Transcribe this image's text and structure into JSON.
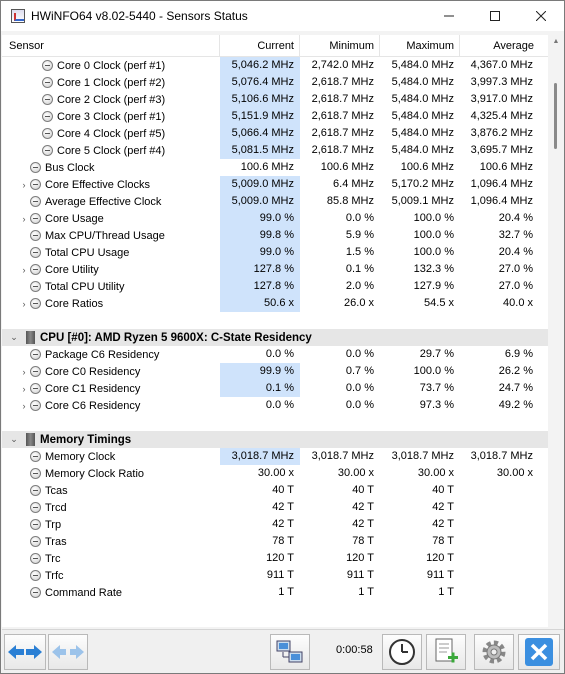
{
  "window": {
    "title": "HWiNFO64 v8.02-5440 - Sensors Status"
  },
  "columns": {
    "sensor": "Sensor",
    "current": "Current",
    "minimum": "Minimum",
    "maximum": "Maximum",
    "average": "Average"
  },
  "rows": [
    {
      "type": "item",
      "indent": 2,
      "expand": "",
      "name": "Core 0 Clock (perf #1)",
      "cur": "5,046.2 MHz",
      "min": "2,742.0 MHz",
      "max": "5,484.0 MHz",
      "avg": "4,367.0 MHz",
      "hl": true
    },
    {
      "type": "item",
      "indent": 2,
      "expand": "",
      "name": "Core 1 Clock (perf #2)",
      "cur": "5,076.4 MHz",
      "min": "2,618.7 MHz",
      "max": "5,484.0 MHz",
      "avg": "3,997.3 MHz",
      "hl": true
    },
    {
      "type": "item",
      "indent": 2,
      "expand": "",
      "name": "Core 2 Clock (perf #3)",
      "cur": "5,106.6 MHz",
      "min": "2,618.7 MHz",
      "max": "5,484.0 MHz",
      "avg": "3,917.0 MHz",
      "hl": true
    },
    {
      "type": "item",
      "indent": 2,
      "expand": "",
      "name": "Core 3 Clock (perf #1)",
      "cur": "5,151.9 MHz",
      "min": "2,618.7 MHz",
      "max": "5,484.0 MHz",
      "avg": "4,325.4 MHz",
      "hl": true
    },
    {
      "type": "item",
      "indent": 2,
      "expand": "",
      "name": "Core 4 Clock (perf #5)",
      "cur": "5,066.4 MHz",
      "min": "2,618.7 MHz",
      "max": "5,484.0 MHz",
      "avg": "3,876.2 MHz",
      "hl": true
    },
    {
      "type": "item",
      "indent": 2,
      "expand": "",
      "name": "Core 5 Clock (perf #4)",
      "cur": "5,081.5 MHz",
      "min": "2,618.7 MHz",
      "max": "5,484.0 MHz",
      "avg": "3,695.7 MHz",
      "hl": true
    },
    {
      "type": "item",
      "indent": 1,
      "expand": "",
      "name": "Bus Clock",
      "cur": "100.6 MHz",
      "min": "100.6 MHz",
      "max": "100.6 MHz",
      "avg": "100.6 MHz",
      "hl": false
    },
    {
      "type": "item",
      "indent": 1,
      "expand": ">",
      "name": "Core Effective Clocks",
      "cur": "5,009.0 MHz",
      "min": "6.4 MHz",
      "max": "5,170.2 MHz",
      "avg": "1,096.4 MHz",
      "hl": true
    },
    {
      "type": "item",
      "indent": 1,
      "expand": "",
      "name": "Average Effective Clock",
      "cur": "5,009.0 MHz",
      "min": "85.8 MHz",
      "max": "5,009.1 MHz",
      "avg": "1,096.4 MHz",
      "hl": true
    },
    {
      "type": "item",
      "indent": 1,
      "expand": ">",
      "name": "Core Usage",
      "cur": "99.0 %",
      "min": "0.0 %",
      "max": "100.0 %",
      "avg": "20.4 %",
      "hl": true
    },
    {
      "type": "item",
      "indent": 1,
      "expand": "",
      "name": "Max CPU/Thread Usage",
      "cur": "99.8 %",
      "min": "5.9 %",
      "max": "100.0 %",
      "avg": "32.7 %",
      "hl": true
    },
    {
      "type": "item",
      "indent": 1,
      "expand": "",
      "name": "Total CPU Usage",
      "cur": "99.0 %",
      "min": "1.5 %",
      "max": "100.0 %",
      "avg": "20.4 %",
      "hl": true
    },
    {
      "type": "item",
      "indent": 1,
      "expand": ">",
      "name": "Core Utility",
      "cur": "127.8 %",
      "min": "0.1 %",
      "max": "132.3 %",
      "avg": "27.0 %",
      "hl": true
    },
    {
      "type": "item",
      "indent": 1,
      "expand": "",
      "name": "Total CPU Utility",
      "cur": "127.8 %",
      "min": "2.0 %",
      "max": "127.9 %",
      "avg": "27.0 %",
      "hl": true
    },
    {
      "type": "item",
      "indent": 1,
      "expand": ">",
      "name": "Core Ratios",
      "cur": "50.6 x",
      "min": "26.0 x",
      "max": "54.5 x",
      "avg": "40.0 x",
      "hl": true
    },
    {
      "type": "gap"
    },
    {
      "type": "group",
      "name": "CPU [#0]: AMD Ryzen 5 9600X: C-State Residency"
    },
    {
      "type": "item",
      "indent": 1,
      "expand": "",
      "name": "Package C6 Residency",
      "cur": "0.0 %",
      "min": "0.0 %",
      "max": "29.7 %",
      "avg": "6.9 %",
      "hl": false
    },
    {
      "type": "item",
      "indent": 1,
      "expand": ">",
      "name": "Core C0 Residency",
      "cur": "99.9 %",
      "min": "0.7 %",
      "max": "100.0 %",
      "avg": "26.2 %",
      "hl": true
    },
    {
      "type": "item",
      "indent": 1,
      "expand": ">",
      "name": "Core C1 Residency",
      "cur": "0.1 %",
      "min": "0.0 %",
      "max": "73.7 %",
      "avg": "24.7 %",
      "hl": true
    },
    {
      "type": "item",
      "indent": 1,
      "expand": ">",
      "name": "Core C6 Residency",
      "cur": "0.0 %",
      "min": "0.0 %",
      "max": "97.3 %",
      "avg": "49.2 %",
      "hl": false
    },
    {
      "type": "gap"
    },
    {
      "type": "group",
      "name": "Memory Timings"
    },
    {
      "type": "item",
      "indent": 1,
      "expand": "",
      "name": "Memory Clock",
      "cur": "3,018.7 MHz",
      "min": "3,018.7 MHz",
      "max": "3,018.7 MHz",
      "avg": "3,018.7 MHz",
      "hl": true
    },
    {
      "type": "item",
      "indent": 1,
      "expand": "",
      "name": "Memory Clock Ratio",
      "cur": "30.00 x",
      "min": "30.00 x",
      "max": "30.00 x",
      "avg": "30.00 x",
      "hl": false
    },
    {
      "type": "item",
      "indent": 1,
      "expand": "",
      "name": "Tcas",
      "cur": "40 T",
      "min": "40 T",
      "max": "40 T",
      "avg": "",
      "hl": false
    },
    {
      "type": "item",
      "indent": 1,
      "expand": "",
      "name": "Trcd",
      "cur": "42 T",
      "min": "42 T",
      "max": "42 T",
      "avg": "",
      "hl": false
    },
    {
      "type": "item",
      "indent": 1,
      "expand": "",
      "name": "Trp",
      "cur": "42 T",
      "min": "42 T",
      "max": "42 T",
      "avg": "",
      "hl": false
    },
    {
      "type": "item",
      "indent": 1,
      "expand": "",
      "name": "Tras",
      "cur": "78 T",
      "min": "78 T",
      "max": "78 T",
      "avg": "",
      "hl": false
    },
    {
      "type": "item",
      "indent": 1,
      "expand": "",
      "name": "Trc",
      "cur": "120 T",
      "min": "120 T",
      "max": "120 T",
      "avg": "",
      "hl": false
    },
    {
      "type": "item",
      "indent": 1,
      "expand": "",
      "name": "Trfc",
      "cur": "911 T",
      "min": "911 T",
      "max": "911 T",
      "avg": "",
      "hl": false
    },
    {
      "type": "item",
      "indent": 1,
      "expand": "",
      "name": "Command Rate",
      "cur": "1 T",
      "min": "1 T",
      "max": "1 T",
      "avg": "",
      "hl": false
    },
    {
      "type": "gap"
    }
  ],
  "footer": {
    "elapsed": "0:00:58"
  }
}
